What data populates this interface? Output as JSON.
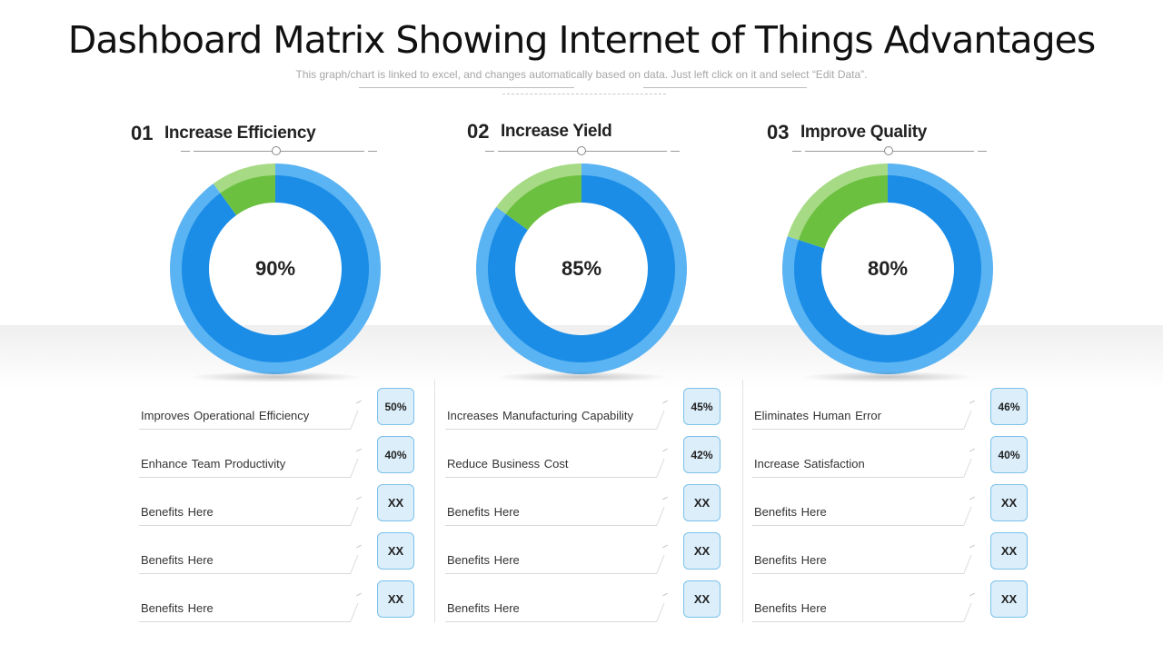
{
  "header": {
    "title": "Dashboard Matrix Showing Internet of Things Advantages",
    "subtitle": "This graph/chart is linked to excel, and changes automatically based on data. Just left click on it and select “Edit Data”."
  },
  "colors": {
    "ring_blue": "#1b8de6",
    "ring_light_blue": "#5ab3f2",
    "ring_green": "#6cc040",
    "ring_light_green": "#a6da85",
    "badge_fill": "#dbeefa",
    "badge_border": "#7cc1ea"
  },
  "panels": [
    {
      "number": "01",
      "heading": "Increase Efficiency",
      "percent_label": "90%",
      "items": [
        {
          "label": "Improves  Operational  Efficiency",
          "value": "50%"
        },
        {
          "label": "Enhance Team Productivity",
          "value": "40%"
        },
        {
          "label": "Benefits Here",
          "value": "XX"
        },
        {
          "label": "Benefits Here",
          "value": "XX"
        },
        {
          "label": "Benefits Here",
          "value": "XX"
        }
      ]
    },
    {
      "number": "02",
      "heading": "Increase Yield",
      "percent_label": "85%",
      "items": [
        {
          "label": "Increases Manufacturing Capability",
          "value": "45%"
        },
        {
          "label": "Reduce Business Cost",
          "value": "42%"
        },
        {
          "label": "Benefits Here",
          "value": "XX"
        },
        {
          "label": "Benefits Here",
          "value": "XX"
        },
        {
          "label": "Benefits Here",
          "value": "XX"
        }
      ]
    },
    {
      "number": "03",
      "heading": "Improve Quality",
      "percent_label": "80%",
      "items": [
        {
          "label": "Eliminates Human Error",
          "value": "46%"
        },
        {
          "label": "Increase Satisfaction",
          "value": "40%"
        },
        {
          "label": "Benefits Here",
          "value": "XX"
        },
        {
          "label": "Benefits Here",
          "value": "XX"
        },
        {
          "label": "Benefits Here",
          "value": "XX"
        }
      ]
    }
  ],
  "chart_data": [
    {
      "type": "pie",
      "title": "Increase Efficiency",
      "series": [
        {
          "values": [
            90,
            10
          ]
        }
      ]
    },
    {
      "type": "pie",
      "title": "Increase Yield",
      "series": [
        {
          "values": [
            85,
            15
          ]
        }
      ]
    },
    {
      "type": "pie",
      "title": "Improve Quality",
      "series": [
        {
          "values": [
            80,
            20
          ]
        }
      ]
    }
  ]
}
